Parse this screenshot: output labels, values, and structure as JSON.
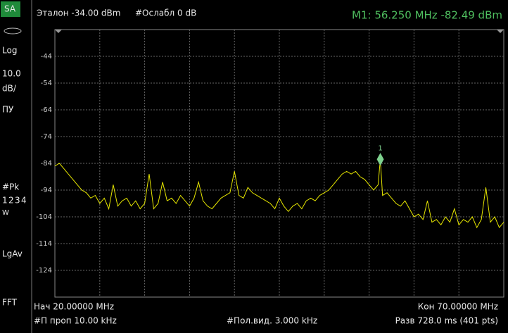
{
  "chart_data": {
    "type": "line",
    "header": {
      "reference": "Эталон -34.00 dBm",
      "attenuation": "#Ослабл 0 dB",
      "marker_readout": "M1:  56.250 MHz -82.49 dBm"
    },
    "side_panel": {
      "mode": "SA",
      "scale_type": "Log",
      "scale_value": "10.0",
      "scale_unit": "dB/",
      "detector_label": "ПУ",
      "peak": "#Pk",
      "traces": [
        "1",
        "2",
        "3",
        "4"
      ],
      "trace_mode": "W",
      "average": "LgAv",
      "sweep_type": "FFT"
    },
    "footer": {
      "start": "Нач 20.00000 MHz",
      "stop": "Кон 70.00000 MHz",
      "rbw": "#П проп 10.00 kHz",
      "vbw": "#Пол.вид. 3.000 kHz",
      "sweep": "Разв 728.0 ms (401 pts)"
    },
    "xlim": [
      20,
      70
    ],
    "ylim": [
      -134,
      -34
    ],
    "yticks": [
      -44,
      -54,
      -64,
      -74,
      -84,
      -94,
      -104,
      -114,
      -124
    ],
    "color": "#e6e600",
    "x": [
      20,
      20.5,
      21,
      21.5,
      22,
      22.5,
      23,
      23.5,
      24,
      24.5,
      25,
      25.5,
      26,
      26.5,
      27,
      27.5,
      28,
      28.5,
      29,
      29.5,
      30,
      30.5,
      31,
      31.5,
      32,
      32.5,
      33,
      33.5,
      34,
      34.5,
      35,
      35.5,
      36,
      36.5,
      37,
      37.5,
      38,
      38.5,
      39,
      39.5,
      40,
      40.5,
      41,
      41.5,
      42,
      42.5,
      43,
      43.5,
      44,
      44.5,
      45,
      45.5,
      46,
      46.5,
      47,
      47.5,
      48,
      48.5,
      49,
      49.5,
      50,
      50.5,
      51,
      51.5,
      52,
      52.5,
      53,
      53.5,
      54,
      54.5,
      55,
      55.5,
      56,
      56.25,
      56.5,
      57,
      57.5,
      58,
      58.5,
      59,
      59.5,
      60,
      60.5,
      61,
      61.5,
      62,
      62.5,
      63,
      63.5,
      64,
      64.5,
      65,
      65.5,
      66,
      66.5,
      67,
      67.5,
      68,
      68.5,
      69,
      69.5,
      70
    ],
    "values": [
      -85,
      -84,
      -86,
      -88,
      -90,
      -92,
      -94,
      -95,
      -97,
      -96,
      -99,
      -97,
      -101,
      -92,
      -100,
      -98,
      -97,
      -100,
      -98,
      -101,
      -99,
      -88,
      -101,
      -99,
      -91,
      -98,
      -97,
      -99,
      -96,
      -98,
      -100,
      -97,
      -91,
      -98,
      -100,
      -101,
      -99,
      -97,
      -96,
      -95,
      -87,
      -96,
      -97,
      -93,
      -95,
      -96,
      -97,
      -98,
      -99,
      -101,
      -97,
      -100,
      -102,
      -100,
      -99,
      -101,
      -98,
      -97,
      -98,
      -96,
      -95,
      -94,
      -92,
      -90,
      -88,
      -87,
      -88,
      -87,
      -89,
      -90,
      -92,
      -94,
      -92,
      -82.49,
      -96,
      -95,
      -97,
      -99,
      -100,
      -98,
      -101,
      -104,
      -103,
      -105,
      -98,
      -106,
      -105,
      -107,
      -104,
      -106,
      -101,
      -107,
      -105,
      -106,
      -104,
      -108,
      -105,
      -93,
      -106,
      -104,
      -108,
      -106
    ],
    "marker": {
      "label": "1",
      "x": 56.25,
      "y": -82.49
    }
  }
}
